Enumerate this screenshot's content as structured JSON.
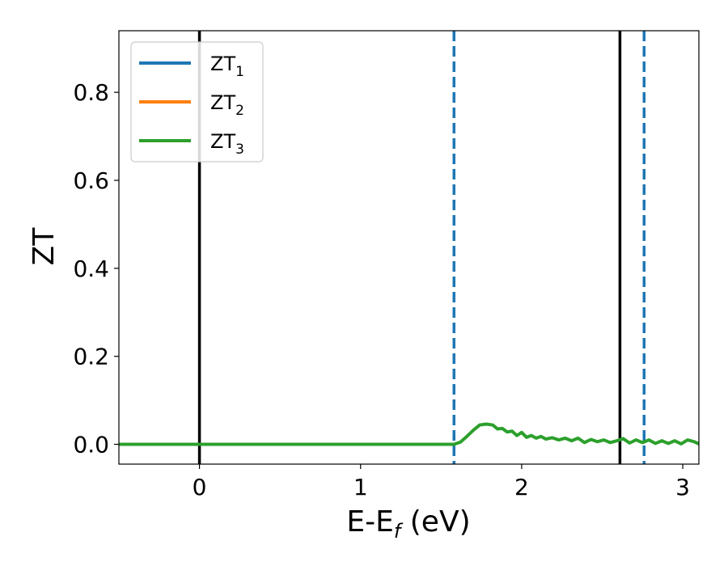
{
  "chart_data": {
    "type": "line",
    "title": "",
    "xlabel": {
      "main": "E-E",
      "sub": "f",
      "tail": " (eV)"
    },
    "ylabel": "ZT",
    "xlim": [
      -0.5,
      3.1
    ],
    "ylim": [
      -0.045,
      0.94
    ],
    "xticks": [
      0,
      1,
      2,
      3
    ],
    "xtick_labels": [
      "0",
      "1",
      "2",
      "3"
    ],
    "yticks": [
      0.0,
      0.2,
      0.4,
      0.6,
      0.8
    ],
    "ytick_labels": [
      "0.0",
      "0.2",
      "0.4",
      "0.6",
      "0.8"
    ],
    "grid": false,
    "legend_position": "upper-left",
    "series": [
      {
        "name": "ZT",
        "sub": "1",
        "color": "#1f77b4",
        "x": [
          -0.5,
          1.58
        ],
        "y": [
          0.0,
          0.0
        ]
      },
      {
        "name": "ZT",
        "sub": "2",
        "color": "#ff7f0e",
        "x": [
          -0.5,
          1.58
        ],
        "y": [
          0.0,
          0.0
        ]
      },
      {
        "name": "ZT",
        "sub": "3",
        "color": "#2ca02c",
        "x": [
          -0.5,
          0.5,
          1.0,
          1.5,
          1.58,
          1.62,
          1.66,
          1.7,
          1.74,
          1.78,
          1.82,
          1.85,
          1.88,
          1.91,
          1.94,
          1.97,
          2.0,
          2.03,
          2.06,
          2.09,
          2.12,
          2.15,
          2.19,
          2.23,
          2.27,
          2.31,
          2.35,
          2.39,
          2.43,
          2.47,
          2.51,
          2.55,
          2.59,
          2.63,
          2.67,
          2.71,
          2.75,
          2.79,
          2.83,
          2.87,
          2.91,
          2.95,
          2.99,
          3.03,
          3.07,
          3.1
        ],
        "y": [
          0.0,
          0.0,
          0.0,
          0.0,
          0.0,
          0.005,
          0.018,
          0.032,
          0.044,
          0.046,
          0.044,
          0.035,
          0.036,
          0.028,
          0.03,
          0.02,
          0.027,
          0.016,
          0.02,
          0.014,
          0.018,
          0.012,
          0.015,
          0.01,
          0.014,
          0.008,
          0.014,
          0.004,
          0.011,
          0.006,
          0.01,
          0.004,
          0.008,
          0.013,
          0.003,
          0.01,
          0.004,
          0.01,
          0.002,
          0.008,
          0.002,
          0.008,
          0.001,
          0.01,
          0.006,
          0.001
        ]
      }
    ],
    "vlines": [
      {
        "x": 0.0,
        "style": "solid",
        "color": "#000000"
      },
      {
        "x": 1.58,
        "style": "dashed",
        "color": "#1f77b4"
      },
      {
        "x": 2.61,
        "style": "solid",
        "color": "#000000"
      },
      {
        "x": 2.76,
        "style": "dashed",
        "color": "#1f77b4"
      }
    ]
  }
}
